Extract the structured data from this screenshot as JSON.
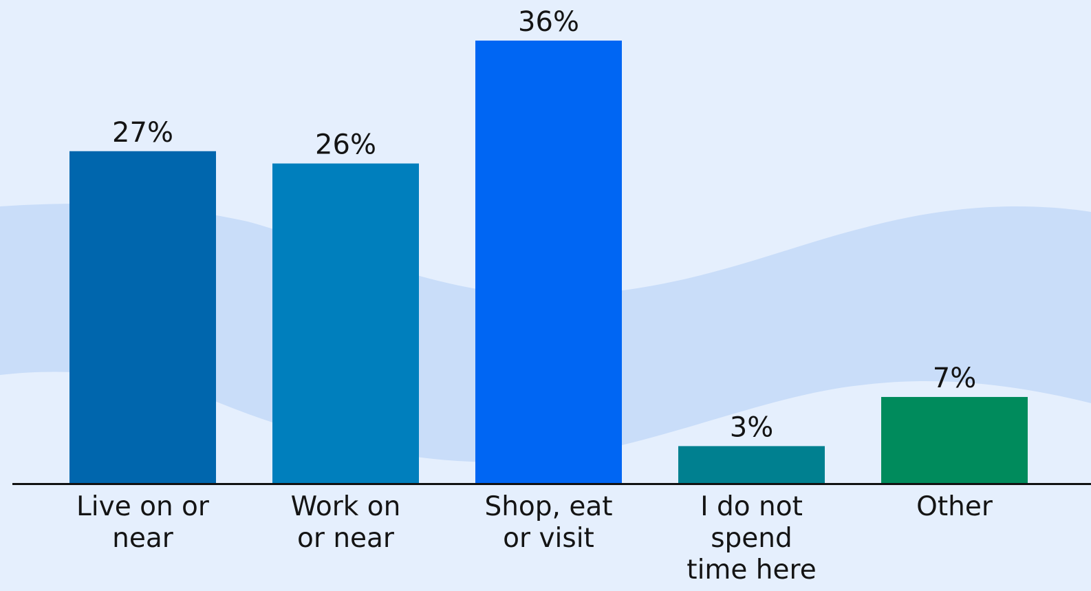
{
  "chart_data": {
    "type": "bar",
    "title": "",
    "xlabel": "",
    "ylabel": "",
    "ylim": [
      0,
      40
    ],
    "grid": false,
    "legend": "none",
    "categories": [
      [
        "Live on or",
        "near"
      ],
      [
        "Work on",
        "or near"
      ],
      [
        "Shop, eat",
        "or visit"
      ],
      [
        "I do not",
        "spend",
        "time here"
      ],
      [
        "Other"
      ]
    ],
    "values": [
      27,
      26,
      36,
      3,
      7
    ],
    "value_labels": [
      "27%",
      "26%",
      "36%",
      "3%",
      "7%"
    ],
    "colors": [
      "#0066ad",
      "#007fbd",
      "#0066f3",
      "#008090",
      "#008b5c"
    ]
  },
  "style": {
    "background": "#e5effd",
    "wave_band": "#c9ddf9",
    "axis_color": "#111111",
    "text_color": "#141414"
  }
}
